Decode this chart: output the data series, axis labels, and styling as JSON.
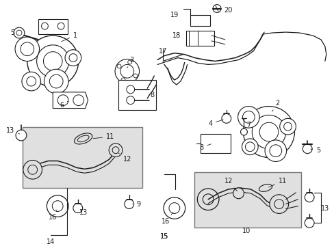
{
  "bg_color": "#ffffff",
  "line_color": "#1a1a1a",
  "box_fill": "#e0e0e0",
  "fs_label": 7.0,
  "lw_main": 0.9
}
